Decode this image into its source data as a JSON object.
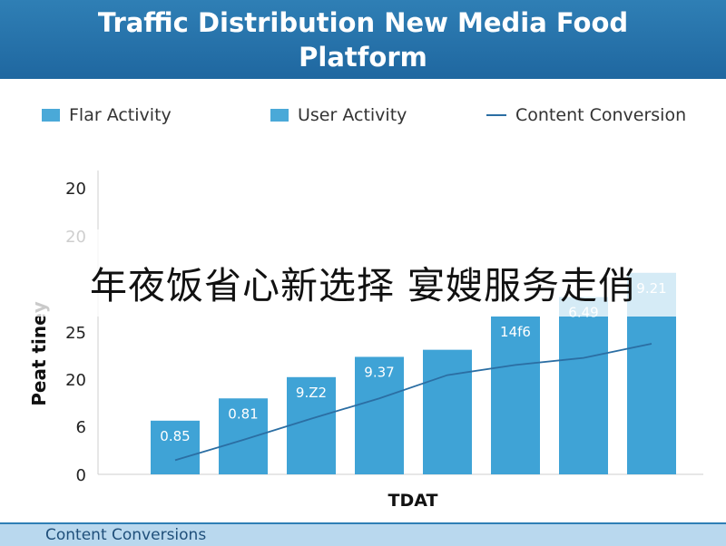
{
  "chart_data": {
    "type": "bar",
    "title": "Traffic Distribution New Media Food Platform",
    "xlabel": "TDAT",
    "ylabel": "Peat tiney",
    "yticks": [
      "0",
      "6",
      "20",
      "25",
      "",
      "20",
      "20"
    ],
    "ylim": [
      0,
      30
    ],
    "legend": [
      "Flar Activity",
      "User Activity",
      "Content Conversion"
    ],
    "legend_position": "top",
    "bars": {
      "values": [
        5.3,
        7.5,
        9.6,
        11.6,
        12.3,
        15.6,
        17.5,
        19.9
      ],
      "labels": [
        "0.85",
        "0.81",
        "9.Z2",
        "9.37",
        "",
        "14f6",
        "6.49",
        "9.21"
      ]
    },
    "line": {
      "values": [
        1.4,
        3.4,
        5.5,
        7.5,
        9.8,
        10.8,
        11.5,
        12.9
      ]
    },
    "bar_color": "#3fa3d6",
    "line_color": "#2b6ea3",
    "grid": false
  },
  "overlay_text": "年夜饭省心新选择 宴嫂服务走俏",
  "footer_text": "Content Conversions"
}
